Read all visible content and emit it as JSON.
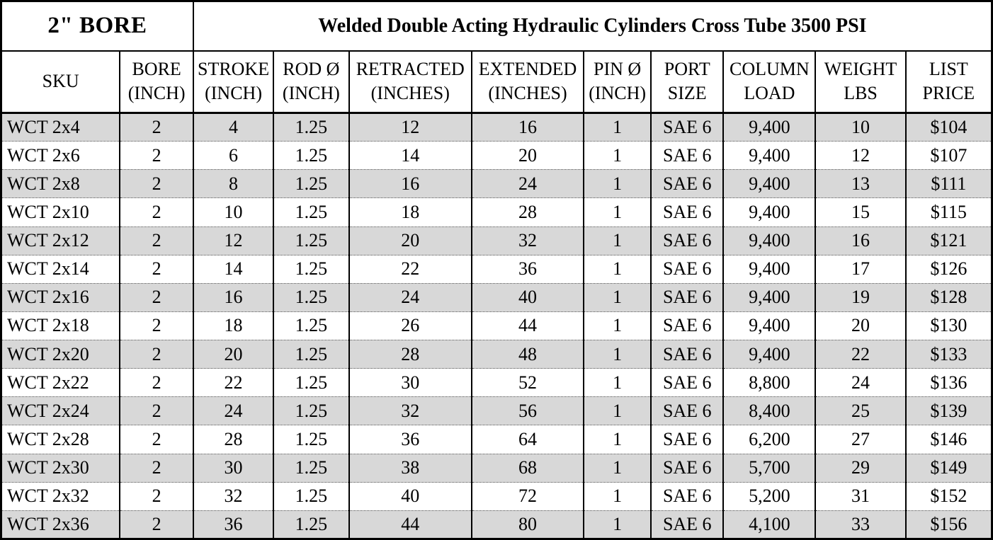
{
  "colors": {
    "row_alt_bg": "#d8d8d8",
    "row_bg": "#ffffff",
    "border": "#000000",
    "text": "#000000"
  },
  "table": {
    "bore_cell_label": "2\" BORE",
    "title": "Welded Double Acting Hydraulic Cylinders Cross Tube 3500 PSI",
    "columns": [
      {
        "id": "sku",
        "label_lines": [
          "SKU"
        ],
        "width_pct": 12.0
      },
      {
        "id": "bore",
        "label_lines": [
          "BORE",
          "(INCH)"
        ],
        "width_pct": 7.4
      },
      {
        "id": "stroke",
        "label_lines": [
          "STROKE",
          "(INCH)"
        ],
        "width_pct": 8.1
      },
      {
        "id": "rod-dia",
        "label_lines": [
          "ROD Ø",
          "(INCH)"
        ],
        "width_pct": 7.6
      },
      {
        "id": "retracted",
        "label_lines": [
          "RETRACTED",
          "(INCHES)"
        ],
        "width_pct": 12.4
      },
      {
        "id": "extended",
        "label_lines": [
          "EXTENDED",
          "(INCHES)"
        ],
        "width_pct": 11.3
      },
      {
        "id": "pin-dia",
        "label_lines": [
          "PIN Ø",
          "(INCH)"
        ],
        "width_pct": 6.8
      },
      {
        "id": "port-size",
        "label_lines": [
          "PORT",
          "SIZE"
        ],
        "width_pct": 7.3
      },
      {
        "id": "column-load",
        "label_lines": [
          "COLUMN",
          "LOAD"
        ],
        "width_pct": 9.3
      },
      {
        "id": "weight",
        "label_lines": [
          "WEIGHT",
          "LBS"
        ],
        "width_pct": 9.1
      },
      {
        "id": "list-price",
        "label_lines": [
          "LIST",
          "PRICE"
        ],
        "width_pct": 8.7
      }
    ],
    "rows": [
      [
        "WCT 2x4",
        "2",
        "4",
        "1.25",
        "12",
        "16",
        "1",
        "SAE 6",
        "9,400",
        "10",
        "$104"
      ],
      [
        "WCT 2x6",
        "2",
        "6",
        "1.25",
        "14",
        "20",
        "1",
        "SAE 6",
        "9,400",
        "12",
        "$107"
      ],
      [
        "WCT 2x8",
        "2",
        "8",
        "1.25",
        "16",
        "24",
        "1",
        "SAE 6",
        "9,400",
        "13",
        "$111"
      ],
      [
        "WCT 2x10",
        "2",
        "10",
        "1.25",
        "18",
        "28",
        "1",
        "SAE 6",
        "9,400",
        "15",
        "$115"
      ],
      [
        "WCT 2x12",
        "2",
        "12",
        "1.25",
        "20",
        "32",
        "1",
        "SAE 6",
        "9,400",
        "16",
        "$121"
      ],
      [
        "WCT 2x14",
        "2",
        "14",
        "1.25",
        "22",
        "36",
        "1",
        "SAE 6",
        "9,400",
        "17",
        "$126"
      ],
      [
        "WCT 2x16",
        "2",
        "16",
        "1.25",
        "24",
        "40",
        "1",
        "SAE 6",
        "9,400",
        "19",
        "$128"
      ],
      [
        "WCT 2x18",
        "2",
        "18",
        "1.25",
        "26",
        "44",
        "1",
        "SAE 6",
        "9,400",
        "20",
        "$130"
      ],
      [
        "WCT 2x20",
        "2",
        "20",
        "1.25",
        "28",
        "48",
        "1",
        "SAE 6",
        "9,400",
        "22",
        "$133"
      ],
      [
        "WCT 2x22",
        "2",
        "22",
        "1.25",
        "30",
        "52",
        "1",
        "SAE 6",
        "8,800",
        "24",
        "$136"
      ],
      [
        "WCT 2x24",
        "2",
        "24",
        "1.25",
        "32",
        "56",
        "1",
        "SAE 6",
        "8,400",
        "25",
        "$139"
      ],
      [
        "WCT 2x28",
        "2",
        "28",
        "1.25",
        "36",
        "64",
        "1",
        "SAE 6",
        "6,200",
        "27",
        "$146"
      ],
      [
        "WCT 2x30",
        "2",
        "30",
        "1.25",
        "38",
        "68",
        "1",
        "SAE 6",
        "5,700",
        "29",
        "$149"
      ],
      [
        "WCT 2x32",
        "2",
        "32",
        "1.25",
        "40",
        "72",
        "1",
        "SAE 6",
        "5,200",
        "31",
        "$152"
      ],
      [
        "WCT 2x36",
        "2",
        "36",
        "1.25",
        "44",
        "80",
        "1",
        "SAE 6",
        "4,100",
        "33",
        "$156"
      ]
    ]
  }
}
